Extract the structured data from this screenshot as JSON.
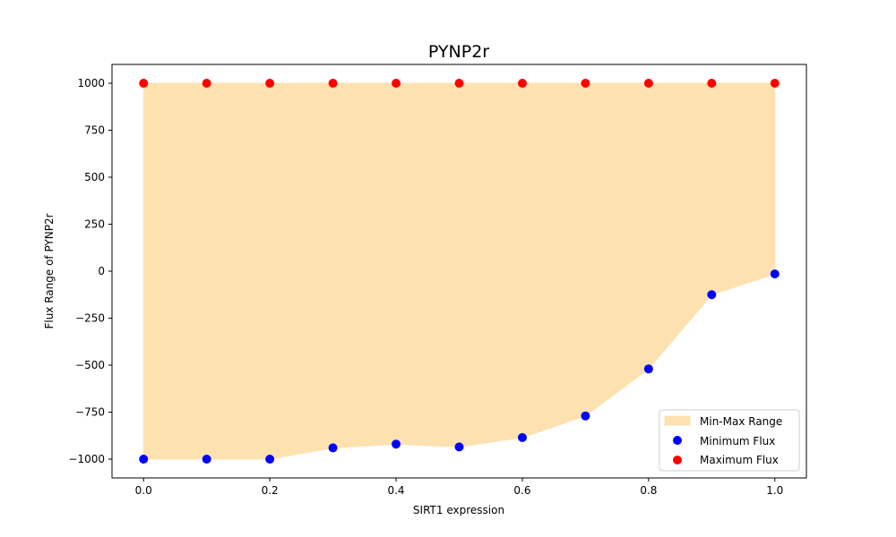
{
  "chart_data": {
    "type": "scatter",
    "title": "PYNP2r",
    "xlabel": "SIRT1 expression",
    "ylabel": "Flux Range of PYNP2r",
    "xlim": [
      -0.05,
      1.05
    ],
    "ylim": [
      -1100,
      1100
    ],
    "xticks": [
      "0.0",
      "0.2",
      "0.4",
      "0.6",
      "0.8",
      "1.0"
    ],
    "yticks": [
      "−1000",
      "−750",
      "−500",
      "−250",
      "0",
      "250",
      "500",
      "750",
      "1000"
    ],
    "x": [
      0.0,
      0.1,
      0.2,
      0.3,
      0.4,
      0.5,
      0.6,
      0.7,
      0.8,
      0.9,
      1.0
    ],
    "fill_label": "Min-Max Range",
    "fill_color": "#fde2b0",
    "legend_position": "lower right",
    "series": [
      {
        "name": "Minimum Flux",
        "color": "#0000ff",
        "values": [
          -1000,
          -1000,
          -1000,
          -940,
          -920,
          -935,
          -885,
          -770,
          -520,
          -125,
          -15
        ]
      },
      {
        "name": "Maximum Flux",
        "color": "#ff0000",
        "values": [
          1000,
          1000,
          1000,
          1000,
          1000,
          1000,
          1000,
          1000,
          1000,
          1000,
          1000
        ]
      }
    ]
  }
}
